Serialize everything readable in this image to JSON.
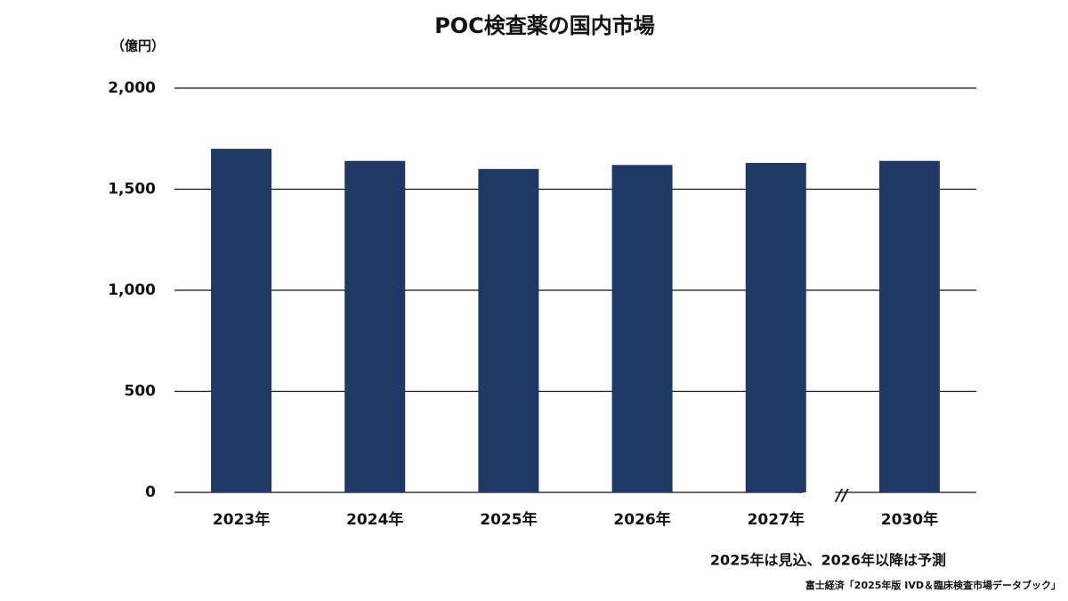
{
  "chart_data": {
    "type": "bar",
    "title": "POC検査薬の国内市場",
    "y_unit": "（億円）",
    "categories": [
      "2023年",
      "2024年",
      "2025年",
      "2026年",
      "2027年",
      "2030年"
    ],
    "values": [
      1700,
      1640,
      1600,
      1620,
      1630,
      1640
    ],
    "color": "#1f3864",
    "ylim": [
      0,
      2000
    ],
    "yticks": [
      0,
      500,
      {
        "value": 1000,
        "label": "1,000"
      },
      {
        "value": 1500,
        "label": "1,500"
      },
      {
        "value": 2000,
        "label": "2,000"
      }
    ],
    "grid": true,
    "axis_break": "//",
    "note": "2025年は見込、2026年以降は予測",
    "source": "富士経済「2025年版 IVD＆臨床検査市場データブック」"
  }
}
